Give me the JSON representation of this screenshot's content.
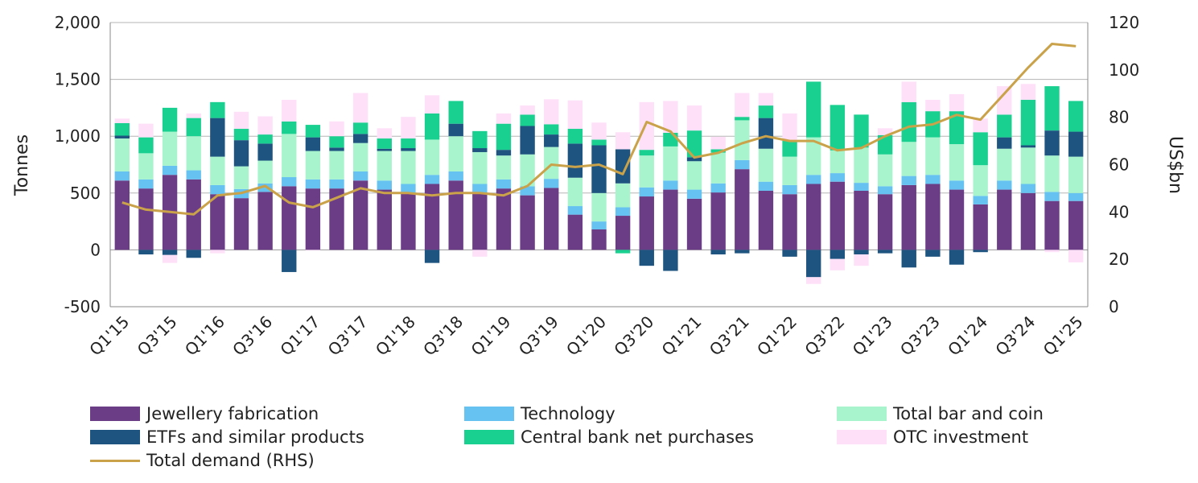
{
  "chart_data": {
    "type": "bar",
    "stacked": true,
    "categories": [
      "Q1'15",
      "Q2'15",
      "Q3'15",
      "Q4'15",
      "Q1'16",
      "Q2'16",
      "Q3'16",
      "Q4'16",
      "Q1'17",
      "Q2'17",
      "Q3'17",
      "Q4'17",
      "Q1'18",
      "Q2'18",
      "Q3'18",
      "Q4'18",
      "Q1'19",
      "Q2'19",
      "Q3'19",
      "Q4'19",
      "Q1'20",
      "Q2'20",
      "Q3'20",
      "Q4'20",
      "Q1'21",
      "Q2'21",
      "Q3'21",
      "Q4'21",
      "Q1'22",
      "Q2'22",
      "Q3'22",
      "Q4'22",
      "Q1'23",
      "Q2'23",
      "Q3'23",
      "Q4'23",
      "Q1'24",
      "Q2'24",
      "Q3'24",
      "Q4'24",
      "Q1'25"
    ],
    "x_tick_labels": [
      "Q1'15",
      "Q3'15",
      "Q1'16",
      "Q3'16",
      "Q1'17",
      "Q3'17",
      "Q1'18",
      "Q3'18",
      "Q1'19",
      "Q3'19",
      "Q1'20",
      "Q3'20",
      "Q1'21",
      "Q3'21",
      "Q1'22",
      "Q3'22",
      "Q1'23",
      "Q3'23",
      "Q1'24",
      "Q3'24",
      "Q1'25"
    ],
    "series": [
      {
        "name": "Jewellery fabrication",
        "color": "#6b3d86",
        "values": [
          610,
          540,
          660,
          620,
          490,
          455,
          510,
          560,
          540,
          540,
          610,
          530,
          500,
          580,
          610,
          500,
          540,
          480,
          545,
          310,
          180,
          300,
          470,
          530,
          450,
          505,
          710,
          520,
          490,
          580,
          600,
          520,
          490,
          570,
          580,
          530,
          400,
          530,
          500,
          430,
          430
        ]
      },
      {
        "name": "Technology",
        "color": "#66c2f0",
        "values": [
          80,
          80,
          80,
          80,
          80,
          80,
          75,
          80,
          80,
          80,
          80,
          80,
          80,
          80,
          80,
          80,
          80,
          80,
          80,
          75,
          70,
          75,
          80,
          80,
          80,
          80,
          80,
          80,
          80,
          80,
          75,
          70,
          70,
          80,
          80,
          80,
          75,
          80,
          80,
          80,
          70
        ]
      },
      {
        "name": "Total bar and coin",
        "color": "#a8f5cd",
        "values": [
          290,
          230,
          300,
          300,
          250,
          200,
          200,
          380,
          250,
          250,
          250,
          260,
          290,
          310,
          310,
          280,
          210,
          280,
          280,
          250,
          250,
          210,
          280,
          300,
          250,
          270,
          350,
          290,
          250,
          330,
          200,
          310,
          280,
          300,
          330,
          320,
          270,
          280,
          320,
          320,
          320
        ]
      },
      {
        "name": "ETFs and similar products",
        "color": "#1e5480",
        "values": [
          25,
          -40,
          -45,
          -70,
          340,
          230,
          150,
          -195,
          120,
          30,
          80,
          20,
          25,
          -115,
          110,
          35,
          50,
          250,
          110,
          300,
          420,
          300,
          -140,
          -185,
          35,
          -40,
          -30,
          270,
          -60,
          -240,
          -80,
          -40,
          -30,
          -155,
          -60,
          -130,
          -20,
          100,
          20,
          220,
          220
        ]
      },
      {
        "name": "Central bank net purchases",
        "color": "#1ad090",
        "values": [
          110,
          140,
          210,
          160,
          140,
          100,
          80,
          110,
          110,
          100,
          100,
          90,
          85,
          230,
          200,
          150,
          230,
          100,
          90,
          130,
          50,
          -30,
          50,
          120,
          235,
          30,
          30,
          110,
          140,
          490,
          400,
          290,
          170,
          350,
          230,
          290,
          290,
          200,
          400,
          390,
          270
        ]
      },
      {
        "name": "OTC investment",
        "color": "#fee0f8",
        "values": [
          40,
          120,
          -70,
          40,
          -30,
          150,
          160,
          190,
          -5,
          130,
          260,
          90,
          190,
          160,
          0,
          -60,
          90,
          80,
          220,
          250,
          150,
          150,
          420,
          280,
          220,
          110,
          210,
          110,
          240,
          -60,
          -100,
          -100,
          60,
          180,
          100,
          150,
          120,
          250,
          140,
          -20,
          -110
        ]
      },
      {
        "name": "Total demand (RHS)",
        "color": "#c9a24a",
        "type": "line",
        "axis": "right",
        "values": [
          44,
          41,
          40,
          39,
          47,
          48,
          51,
          44,
          42,
          46,
          50,
          48,
          48,
          47,
          48,
          48,
          47,
          51,
          60,
          59,
          60,
          56,
          78,
          74,
          63,
          65,
          69,
          72,
          70,
          70,
          66,
          67,
          72,
          76,
          77,
          81,
          79,
          90,
          101,
          111,
          110
        ]
      }
    ],
    "title": "",
    "xlabel": "",
    "ylabel": "Tonnes",
    "y2label": "US$bn",
    "ylim": [
      -500,
      2000
    ],
    "yticks": [
      -500,
      0,
      500,
      1000,
      1500,
      2000
    ],
    "ytick_labels": [
      "-500",
      "0",
      "500",
      "1,000",
      "1,500",
      "2,000"
    ],
    "y2lim": [
      0,
      120
    ],
    "y2ticks": [
      0,
      20,
      40,
      60,
      80,
      100,
      120
    ],
    "y2tick_labels": [
      "0",
      "20",
      "40",
      "60",
      "80",
      "100",
      "120"
    ],
    "grid": true,
    "legend_position": "bottom"
  }
}
